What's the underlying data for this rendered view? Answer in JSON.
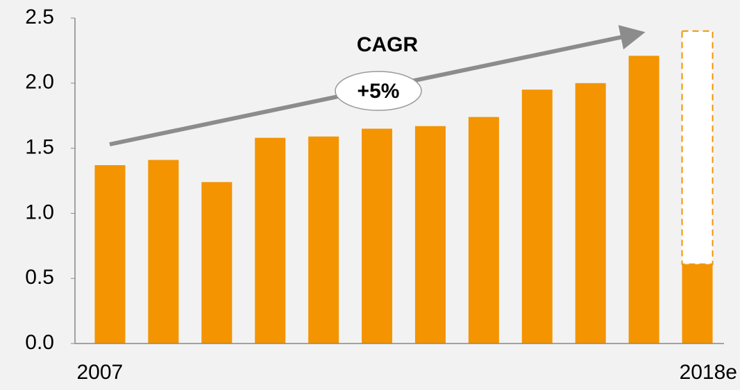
{
  "chart_data": {
    "type": "bar",
    "categories": [
      "2007",
      null,
      null,
      null,
      null,
      null,
      null,
      null,
      null,
      null,
      null,
      "2018e"
    ],
    "series": [
      {
        "color": "#f39400",
        "values": [
          1.37,
          1.41,
          1.24,
          1.58,
          1.59,
          1.65,
          1.67,
          1.74,
          1.95,
          2.0,
          2.21,
          0.61
        ]
      },
      {
        "color": "#ffffff",
        "outline": "#f39400",
        "dashed": true,
        "values": [
          null,
          null,
          null,
          null,
          null,
          null,
          null,
          null,
          null,
          null,
          null,
          1.79
        ]
      }
    ],
    "stacked": true,
    "ylim": [
      0,
      2.5
    ],
    "yticks": [
      {
        "value": 0,
        "label": "0.0"
      },
      0.5,
      {
        "value": 1,
        "label": "1.0"
      },
      1.5,
      {
        "value": 2,
        "label": "2.0"
      },
      2.5
    ],
    "annotations": [
      "CAGR",
      "+5%"
    ]
  }
}
